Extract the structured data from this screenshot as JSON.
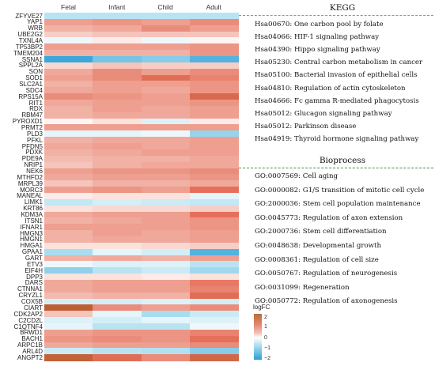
{
  "chart_data": {
    "type": "heatmap",
    "columns": [
      "Fetal",
      "Infant",
      "Child",
      "Adult"
    ],
    "rows": [
      {
        "gene": "ZFYVE27",
        "values": [
          -0.8,
          -0.8,
          -0.8,
          -0.8
        ]
      },
      {
        "gene": "YAP1",
        "values": [
          1.0,
          1.1,
          1.0,
          1.2
        ]
      },
      {
        "gene": "WRB",
        "values": [
          0.8,
          0.9,
          1.2,
          1.0
        ]
      },
      {
        "gene": "UBE2G2",
        "values": [
          0.5,
          0.6,
          0.6,
          0.6
        ]
      },
      {
        "gene": "TXNL4A",
        "values": [
          -0.2,
          0.2,
          -0.2,
          0.1
        ]
      },
      {
        "gene": "TP53BP2",
        "values": [
          1.0,
          1.0,
          1.0,
          1.1
        ]
      },
      {
        "gene": "TMEM204",
        "values": [
          0.8,
          0.8,
          0.8,
          1.1
        ]
      },
      {
        "gene": "SSNA1",
        "values": [
          -2.3,
          -1.6,
          -1.4,
          -2.0
        ]
      },
      {
        "gene": "SPPL2A",
        "values": [
          0.4,
          0.6,
          0.5,
          0.5
        ]
      },
      {
        "gene": "SON",
        "values": [
          0.9,
          1.2,
          1.0,
          1.2
        ]
      },
      {
        "gene": "SOD1",
        "values": [
          1.0,
          1.2,
          1.6,
          1.3
        ]
      },
      {
        "gene": "SLC2A1",
        "values": [
          0.8,
          1.0,
          1.0,
          1.1
        ]
      },
      {
        "gene": "SDC4",
        "values": [
          0.9,
          1.0,
          0.9,
          1.1
        ]
      },
      {
        "gene": "RPS15A",
        "values": [
          1.2,
          1.1,
          1.0,
          1.8
        ]
      },
      {
        "gene": "RIT1",
        "values": [
          0.9,
          1.0,
          1.0,
          1.1
        ]
      },
      {
        "gene": "RDX",
        "values": [
          0.8,
          1.0,
          0.9,
          1.0
        ]
      },
      {
        "gene": "RBM47",
        "values": [
          0.8,
          0.9,
          0.9,
          1.0
        ]
      },
      {
        "gene": "PYROXD1",
        "values": [
          0.1,
          0.3,
          -0.4,
          0.2
        ]
      },
      {
        "gene": "PRMT2",
        "values": [
          1.0,
          1.0,
          1.0,
          1.0
        ]
      },
      {
        "gene": "PLD3",
        "values": [
          -0.3,
          -0.3,
          -0.2,
          -1.2
        ]
      },
      {
        "gene": "PFKL",
        "values": [
          0.8,
          0.9,
          0.9,
          1.0
        ]
      },
      {
        "gene": "PFDN5",
        "values": [
          0.9,
          1.0,
          0.9,
          1.0
        ]
      },
      {
        "gene": "PDXK",
        "values": [
          0.8,
          0.9,
          1.0,
          1.0
        ]
      },
      {
        "gene": "PDE9A",
        "values": [
          0.7,
          0.8,
          0.8,
          0.9
        ]
      },
      {
        "gene": "NRIP1",
        "values": [
          0.6,
          0.8,
          0.9,
          0.9
        ]
      },
      {
        "gene": "NEK6",
        "values": [
          1.0,
          1.1,
          1.1,
          1.2
        ]
      },
      {
        "gene": "MTHFD2",
        "values": [
          0.9,
          1.0,
          1.0,
          1.1
        ]
      },
      {
        "gene": "MRPL39",
        "values": [
          0.6,
          0.8,
          0.8,
          0.9
        ]
      },
      {
        "gene": "MORC3",
        "values": [
          1.0,
          1.1,
          1.0,
          1.5
        ]
      },
      {
        "gene": "MANEAL",
        "values": [
          0.2,
          0.3,
          0.3,
          -0.3
        ]
      },
      {
        "gene": "LIMK1",
        "values": [
          -0.7,
          -0.5,
          -0.6,
          -0.7
        ]
      },
      {
        "gene": "KRT86",
        "values": [
          0.3,
          0.4,
          0.4,
          0.5
        ]
      },
      {
        "gene": "KDM3A",
        "values": [
          0.9,
          1.0,
          1.0,
          1.5
        ]
      },
      {
        "gene": "ITSN1",
        "values": [
          0.8,
          0.9,
          1.0,
          1.1
        ]
      },
      {
        "gene": "IFNAR1",
        "values": [
          1.0,
          1.0,
          1.0,
          1.1
        ]
      },
      {
        "gene": "HMGN3",
        "values": [
          0.8,
          1.0,
          0.9,
          1.0
        ]
      },
      {
        "gene": "HMGN1",
        "values": [
          0.8,
          0.9,
          0.9,
          1.0
        ]
      },
      {
        "gene": "HMGA1",
        "values": [
          0.3,
          0.3,
          0.4,
          0.5
        ]
      },
      {
        "gene": "GPAA1",
        "values": [
          -1.0,
          -0.3,
          -0.5,
          -2.0
        ]
      },
      {
        "gene": "GART",
        "values": [
          0.8,
          0.9,
          0.8,
          1.0
        ]
      },
      {
        "gene": "ETV3",
        "values": [
          -0.2,
          -0.4,
          -0.4,
          -0.8
        ]
      },
      {
        "gene": "EIF4H",
        "values": [
          -1.3,
          -0.8,
          -0.6,
          -1.1
        ]
      },
      {
        "gene": "DPP3",
        "values": [
          0.3,
          0.3,
          0.2,
          0.3
        ]
      },
      {
        "gene": "DARS",
        "values": [
          0.9,
          1.0,
          1.0,
          1.4
        ]
      },
      {
        "gene": "CTNNA1",
        "values": [
          0.9,
          1.0,
          1.0,
          1.3
        ]
      },
      {
        "gene": "CRYZL1",
        "values": [
          0.7,
          0.8,
          0.8,
          1.6
        ]
      },
      {
        "gene": "COX5B",
        "values": [
          -0.5,
          -0.5,
          -0.4,
          -0.5
        ]
      },
      {
        "gene": "CIART",
        "values": [
          2.3,
          1.2,
          1.0,
          1.2
        ]
      },
      {
        "gene": "CDK2AP2",
        "values": [
          0.6,
          -0.3,
          -1.0,
          -0.6
        ]
      },
      {
        "gene": "C2CD2L",
        "values": [
          -0.4,
          -0.5,
          -0.3,
          -0.4
        ]
      },
      {
        "gene": "C1QTNF4",
        "values": [
          -0.3,
          -0.8,
          -0.8,
          -0.2
        ]
      },
      {
        "gene": "BRWD1",
        "values": [
          1.0,
          1.1,
          1.1,
          1.3
        ]
      },
      {
        "gene": "BACH1",
        "values": [
          1.1,
          1.2,
          1.1,
          1.5
        ]
      },
      {
        "gene": "ARPC1B",
        "values": [
          0.9,
          1.0,
          1.0,
          1.2
        ]
      },
      {
        "gene": "ARL4D",
        "values": [
          -0.6,
          -0.8,
          -0.9,
          -1.4
        ]
      },
      {
        "gene": "ANGPT2",
        "values": [
          2.2,
          1.6,
          1.2,
          1.9
        ]
      }
    ],
    "legend": {
      "title": "logFC",
      "ticks": [
        "2",
        "1",
        "0",
        "−1",
        "−2"
      ],
      "range": [
        -2.5,
        2.5
      ],
      "placement": "bottom-right"
    },
    "colors": {
      "high": "#b55a2b",
      "mid_high": "#e5705a",
      "low_pos": "#f5c4bb",
      "zero": "#ffffff",
      "low_neg": "#a9dcef",
      "high_neg": "#2a9fd8"
    }
  },
  "kegg": {
    "title": "KEGG",
    "items": [
      "Hsa00670: One carbon pool by folate",
      "Hsa04066: HIF-1 signaling pathway",
      "Hsa04390: Hippo signaling pathway",
      "Hsa05230: Central carbon metabolism in cancer",
      "Hsa05100: Bacterial invasion of epithelial cells",
      "Hsa04810: Regulation of actin cytoskeleton",
      "Hsa04666: Fc gamma R-mediated phagocytosis",
      "Hsa05012: Glucagon signaling pathway",
      "Hsa05012: Parkinson disease",
      "Hsa04919: Thyroid hormone signaling pathway"
    ]
  },
  "bioprocess": {
    "title": "Bioprocess",
    "items": [
      "GO:0007569: Cell aging",
      "GO:0000082: G1/S transition of mitotic cell cycle",
      "GO:2000036: Stem cell population maintenance",
      "GO:0045773: Regulation of axon extension",
      "GO:2000736: Stem cell differentiation",
      "GO:0048638: Developmental growth",
      "GO:0008361: Regulation of cell size",
      "GO:0050767: Regulation of neurogenesis",
      "GO:0031099: Regeneration",
      "GO:0050772: Regulation of axonogenesis"
    ]
  }
}
